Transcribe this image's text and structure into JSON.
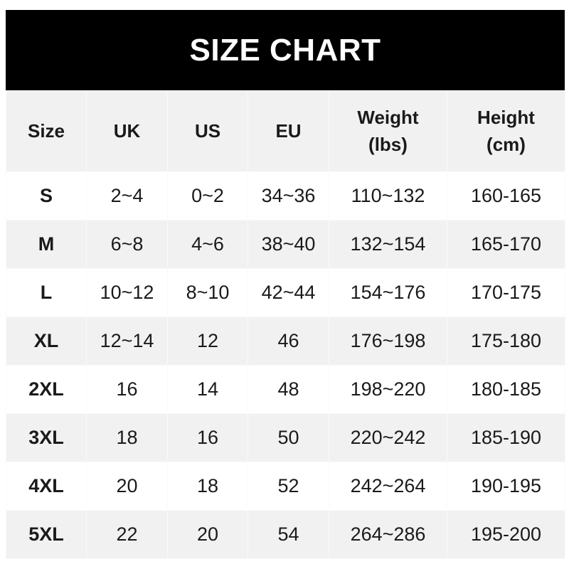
{
  "title": "SIZE CHART",
  "headers": [
    "Size",
    "UK",
    "US",
    "EU",
    "Weight\n(lbs)",
    "Height\n(cm)"
  ],
  "rows": [
    [
      "S",
      "2~4",
      "0~2",
      "34~36",
      "110~132",
      "160-165"
    ],
    [
      "M",
      "6~8",
      "4~6",
      "38~40",
      "132~154",
      "165-170"
    ],
    [
      "L",
      "10~12",
      "8~10",
      "42~44",
      "154~176",
      "170-175"
    ],
    [
      "XL",
      "12~14",
      "12",
      "46",
      "176~198",
      "175-180"
    ],
    [
      "2XL",
      "16",
      "14",
      "48",
      "198~220",
      "180-185"
    ],
    [
      "3XL",
      "18",
      "16",
      "50",
      "220~242",
      "185-190"
    ],
    [
      "4XL",
      "20",
      "18",
      "52",
      "242~264",
      "190-195"
    ],
    [
      "5XL",
      "22",
      "20",
      "54",
      "264~286",
      "195-200"
    ]
  ],
  "colors": {
    "title_bg": "#000000",
    "stripe": "#f1f1f1"
  }
}
